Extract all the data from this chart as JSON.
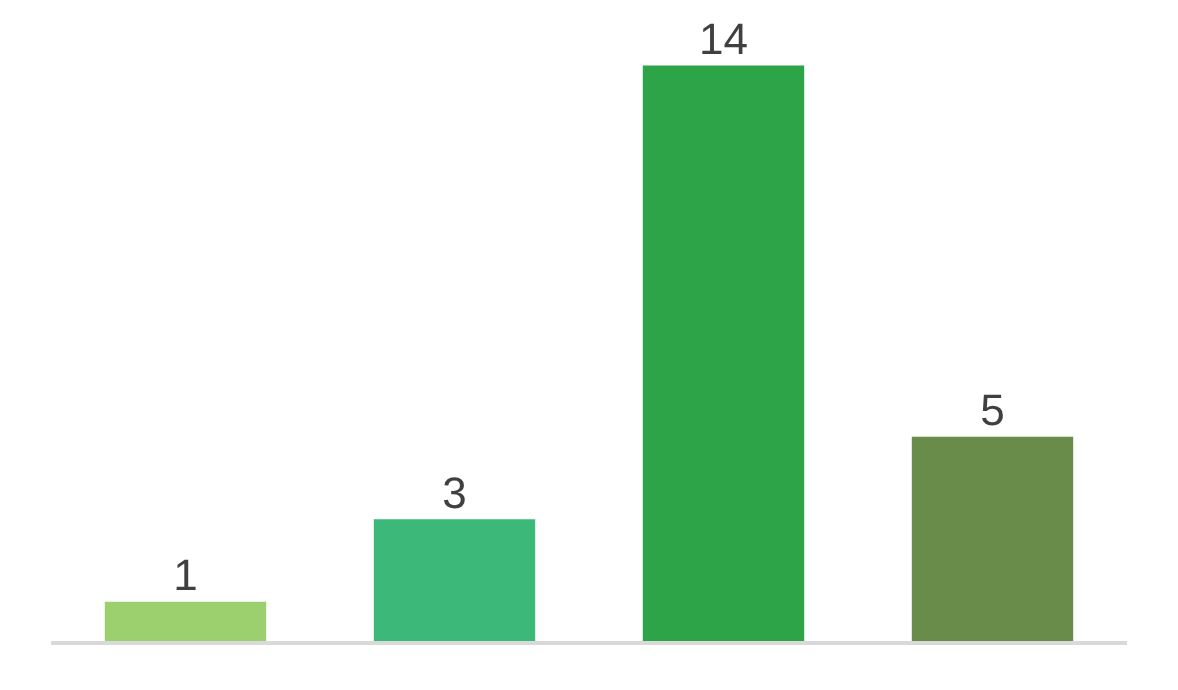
{
  "chart_data": {
    "type": "bar",
    "categories": [
      null,
      null,
      null,
      null
    ],
    "values": [
      1,
      3,
      14,
      5
    ],
    "colors": [
      "#9ccf6e",
      "#3cb878",
      "#2ea449",
      "#6a8c4a"
    ],
    "data_labels": true,
    "grid": false
  }
}
